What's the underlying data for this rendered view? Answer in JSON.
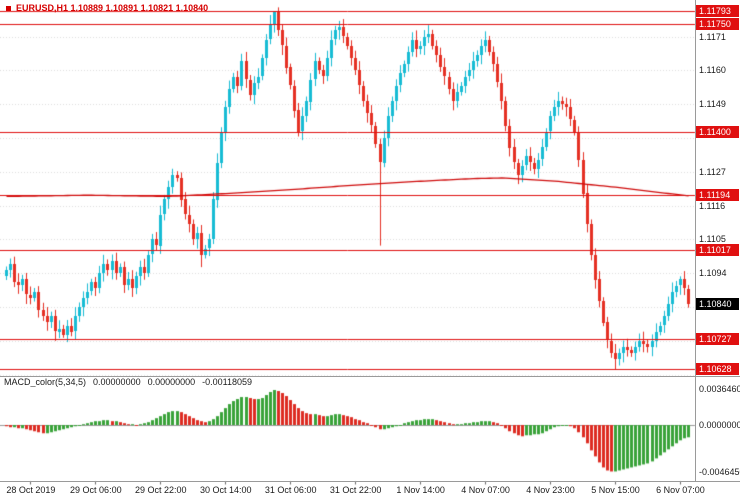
{
  "header": {
    "text": "EURUSD,H1  1.10889 1.10891 1.10821 1.10840"
  },
  "macd_header": {
    "name": "MACD_color(5,34,5)",
    "values": [
      "0.00000000",
      "0.00000000",
      "-0.00118059"
    ]
  },
  "chart_data": {
    "type": "candlestick",
    "symbol": "EURUSD",
    "timeframe": "H1",
    "current_bar_ohlc": {
      "open": 1.10889,
      "high": 1.10891,
      "low": 1.10821,
      "close": 1.1084
    },
    "style": {
      "bull_color": "#17bcd4",
      "bear_color": "#e53024",
      "level_color": "#e01010",
      "ma_color": "#cf0a0a",
      "macd_up_color": "#3aa33a",
      "macd_down_color": "#dd2c22",
      "current_box_color": "#000000",
      "header_color": "#d60000",
      "grid_color": "#dcdcdc",
      "zero_line_color": "#9a9a9a"
    },
    "levels": [
      1.11793,
      1.1175,
      1.114,
      1.11194,
      1.11017,
      1.10727,
      1.10628
    ],
    "ma_keypoints": [
      [
        0,
        1.1119
      ],
      [
        20,
        1.11194
      ],
      [
        40,
        1.1119
      ],
      [
        55,
        1.112
      ],
      [
        70,
        1.11212
      ],
      [
        85,
        1.11226
      ],
      [
        100,
        1.11238
      ],
      [
        115,
        1.11248
      ],
      [
        122,
        1.1125
      ],
      [
        135,
        1.1124
      ],
      [
        150,
        1.1122
      ],
      [
        160,
        1.11204
      ],
      [
        168,
        1.11192
      ]
    ],
    "price_axis": {
      "range_top": 1.11829,
      "range_bottom": 1.10609,
      "gridline_prices": [
        1.1171,
        1.116,
        1.1149,
        1.1138,
        1.1127,
        1.1116,
        1.1105,
        1.1094,
        1.1083,
        1.1072,
        1.1061
      ],
      "plain_labels": [
        {
          "price": 1.1171,
          "text": "1.1171"
        },
        {
          "price": 1.116,
          "text": "1.1160"
        },
        {
          "price": 1.1149,
          "text": "1.1149"
        },
        {
          "price": 1.1127,
          "text": "1.1127"
        },
        {
          "price": 1.1116,
          "text": "1.1116"
        },
        {
          "price": 1.1105,
          "text": "1.1105"
        },
        {
          "price": 1.1094,
          "text": "1.1094"
        }
      ],
      "boxed_labels": [
        {
          "price": 1.11793,
          "text": "1.11793",
          "kind": "level"
        },
        {
          "price": 1.1175,
          "text": "1.11750",
          "kind": "level"
        },
        {
          "price": 1.114,
          "text": "1.11400",
          "kind": "level"
        },
        {
          "price": 1.11194,
          "text": "1.11194",
          "kind": "level"
        },
        {
          "price": 1.11017,
          "text": "1.11017",
          "kind": "level"
        },
        {
          "price": 1.1084,
          "text": "1.10840",
          "kind": "current"
        },
        {
          "price": 1.10727,
          "text": "1.10727",
          "kind": "level"
        },
        {
          "price": 1.10628,
          "text": "1.10628",
          "kind": "level"
        }
      ]
    },
    "macd_axis": {
      "range_top": 0.004,
      "range_bottom": -0.00525,
      "labels": [
        {
          "value": 0.003646,
          "text": "0.0036460"
        },
        {
          "value": 0.0,
          "text": "0.0000000"
        },
        {
          "value": -0.004645,
          "text": "-0.0046450"
        }
      ]
    },
    "x_axis": {
      "ticks": [
        {
          "index": 6,
          "label": "28 Oct 2019"
        },
        {
          "index": 22,
          "label": "29 Oct 06:00"
        },
        {
          "index": 38,
          "label": "29 Oct 22:00"
        },
        {
          "index": 54,
          "label": "30 Oct 14:00"
        },
        {
          "index": 70,
          "label": "31 Oct 06:00"
        },
        {
          "index": 86,
          "label": "31 Oct 22:00"
        },
        {
          "index": 102,
          "label": "1 Nov 14:00"
        },
        {
          "index": 118,
          "label": "4 Nov 07:00"
        },
        {
          "index": 134,
          "label": "4 Nov 23:00"
        },
        {
          "index": 150,
          "label": "5 Nov 15:00"
        },
        {
          "index": 166,
          "label": "6 Nov 07:00"
        }
      ]
    },
    "candles": {
      "first_open": 1.1093,
      "closes": [
        1.1095,
        1.1097,
        1.1091,
        1.109,
        1.1092,
        1.1087,
        1.1086,
        1.1088,
        1.1082,
        1.108,
        1.1078,
        1.108,
        1.1075,
        1.1076,
        1.1074,
        1.1077,
        1.1075,
        1.108,
        1.1083,
        1.1086,
        1.1088,
        1.1091,
        1.1089,
        1.1094,
        1.1097,
        1.1095,
        1.1098,
        1.1094,
        1.1096,
        1.109,
        1.1092,
        1.1089,
        1.1093,
        1.1096,
        1.1094,
        1.11,
        1.1105,
        1.1103,
        1.1113,
        1.1118,
        1.1122,
        1.1126,
        1.1125,
        1.1118,
        1.1113,
        1.111,
        1.1105,
        1.1107,
        1.11,
        1.1102,
        1.1105,
        1.1118,
        1.113,
        1.114,
        1.1148,
        1.1154,
        1.1158,
        1.1155,
        1.1163,
        1.1157,
        1.1152,
        1.1156,
        1.1158,
        1.1164,
        1.117,
        1.1175,
        1.1179,
        1.1173,
        1.1168,
        1.1161,
        1.1155,
        1.1147,
        1.114,
        1.1145,
        1.115,
        1.1157,
        1.1163,
        1.116,
        1.1158,
        1.1164,
        1.117,
        1.1173,
        1.1174,
        1.1171,
        1.1168,
        1.1164,
        1.116,
        1.1155,
        1.115,
        1.1146,
        1.1142,
        1.1136,
        1.113,
        1.1138,
        1.1145,
        1.115,
        1.1155,
        1.1159,
        1.1162,
        1.1166,
        1.117,
        1.1167,
        1.1168,
        1.1171,
        1.1172,
        1.1168,
        1.1165,
        1.1161,
        1.1158,
        1.1154,
        1.115,
        1.1153,
        1.1155,
        1.1158,
        1.116,
        1.1163,
        1.1165,
        1.1168,
        1.117,
        1.1166,
        1.1162,
        1.1156,
        1.115,
        1.1142,
        1.1135,
        1.113,
        1.1126,
        1.1129,
        1.1132,
        1.113,
        1.1128,
        1.1131,
        1.1135,
        1.114,
        1.1145,
        1.1148,
        1.115,
        1.1149,
        1.1148,
        1.1144,
        1.114,
        1.1131,
        1.112,
        1.111,
        1.11,
        1.1092,
        1.1085,
        1.1078,
        1.1072,
        1.1068,
        1.1066,
        1.1068,
        1.107,
        1.1069,
        1.1068,
        1.107,
        1.1072,
        1.1071,
        1.107,
        1.1072,
        1.1075,
        1.1077,
        1.108,
        1.1084,
        1.1088,
        1.109,
        1.1092,
        1.1089,
        1.1084
      ],
      "wick_overrides": {
        "14": {
          "l": 1.1073
        },
        "41": {
          "h": 1.1128
        },
        "48": {
          "l": 1.1096
        },
        "65": {
          "h": 1.1178
        },
        "66": {
          "h": 1.11793
        },
        "92": {
          "l": 1.1103
        },
        "126": {
          "l": 1.1123
        },
        "150": {
          "l": 1.10628
        },
        "151": {
          "l": 1.1064
        },
        "166": {
          "h": 1.1093
        }
      }
    },
    "macd": {
      "name": "MACD_color(5,34,5)",
      "histogram": [
        -0.0001,
        -0.0002,
        -0.0002,
        -0.0003,
        -0.0003,
        -0.0004,
        -0.0005,
        -0.0006,
        -0.0007,
        -0.0008,
        -0.0008,
        -0.0007,
        -0.0006,
        -0.0005,
        -0.0004,
        -0.0003,
        -0.0002,
        -0.0001,
        0.0,
        0.0001,
        0.0002,
        0.0003,
        0.0004,
        0.0004,
        0.0005,
        0.0005,
        0.0004,
        0.0004,
        0.0003,
        0.0002,
        0.0001,
        0.0001,
        0.0,
        0.0001,
        0.0002,
        0.0003,
        0.0005,
        0.0007,
        0.0009,
        0.0011,
        0.0013,
        0.0014,
        0.0014,
        0.0013,
        0.0011,
        0.0009,
        0.0007,
        0.0005,
        0.0004,
        0.0003,
        0.0004,
        0.0006,
        0.0009,
        0.0013,
        0.0017,
        0.0021,
        0.0024,
        0.0026,
        0.0028,
        0.0028,
        0.0027,
        0.0026,
        0.0026,
        0.0027,
        0.003,
        0.0033,
        0.0035,
        0.0034,
        0.0032,
        0.0029,
        0.0025,
        0.0021,
        0.0017,
        0.0014,
        0.0012,
        0.0011,
        0.0011,
        0.001,
        0.0009,
        0.0009,
        0.001,
        0.0011,
        0.0011,
        0.001,
        0.0009,
        0.0008,
        0.0006,
        0.0005,
        0.0003,
        0.0002,
        0.0,
        -0.0002,
        -0.0004,
        -0.0004,
        -0.0003,
        -0.0002,
        -0.0001,
        0.0,
        0.0002,
        0.0003,
        0.0004,
        0.0005,
        0.0005,
        0.0006,
        0.0006,
        0.0006,
        0.0005,
        0.0004,
        0.0003,
        0.0002,
        0.0001,
        0.0001,
        0.0001,
        0.0002,
        0.0002,
        0.0003,
        0.0003,
        0.0004,
        0.0004,
        0.0004,
        0.0003,
        0.0002,
        0.0,
        -0.0003,
        -0.0006,
        -0.0008,
        -0.001,
        -0.0011,
        -0.001,
        -0.001,
        -0.0009,
        -0.0009,
        -0.0008,
        -0.0006,
        -0.0004,
        -0.0002,
        -0.0001,
        0.0,
        0.0,
        -0.0001,
        -0.0003,
        -0.0007,
        -0.0012,
        -0.0018,
        -0.0025,
        -0.0031,
        -0.0037,
        -0.0042,
        -0.0045,
        -0.0046,
        -0.0046,
        -0.0045,
        -0.0044,
        -0.0043,
        -0.0042,
        -0.0041,
        -0.004,
        -0.0039,
        -0.0038,
        -0.0036,
        -0.0033,
        -0.003,
        -0.0027,
        -0.0024,
        -0.0021,
        -0.0018,
        -0.0015,
        -0.0013,
        -0.0012
      ]
    }
  }
}
